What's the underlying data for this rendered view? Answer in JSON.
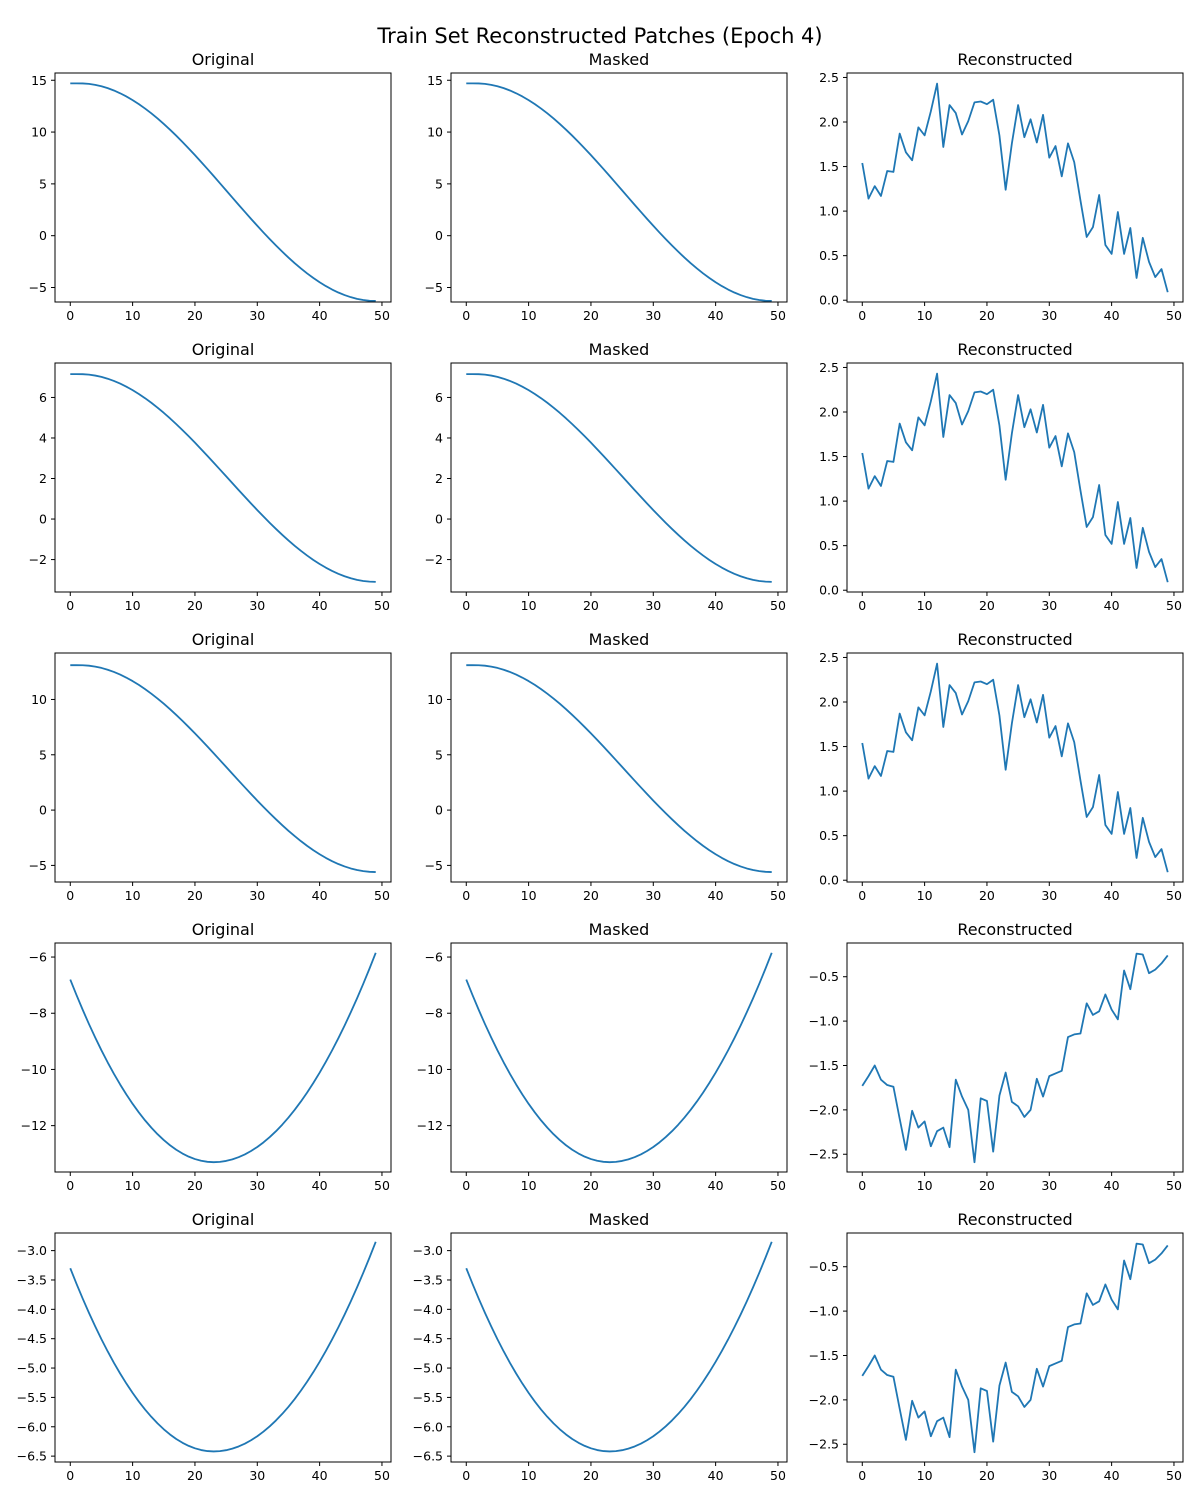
{
  "figure": {
    "suptitle": "Train Set Reconstructed Patches (Epoch 4)"
  },
  "colors": {
    "line": "#1f77b4",
    "axes": "#000000",
    "background": "#ffffff"
  },
  "chart_data": [
    {
      "type": "line",
      "title": "Original",
      "row": 0,
      "col": 0,
      "xlim": [
        -2.45,
        51.45
      ],
      "ylim": [
        -6.4,
        15.7
      ],
      "xticks": [
        0,
        10,
        20,
        30,
        40,
        50
      ],
      "yticks": [
        -5,
        0,
        5,
        10,
        15
      ],
      "ytick_labels": [
        "−5",
        "0",
        "5",
        "10",
        "15"
      ],
      "series": [
        {
          "kind": "cos",
          "a": 14.7,
          "b": -6.3
        }
      ]
    },
    {
      "type": "line",
      "title": "Masked",
      "row": 0,
      "col": 1,
      "xlim": [
        -2.45,
        51.45
      ],
      "ylim": [
        -6.4,
        15.7
      ],
      "xticks": [
        0,
        10,
        20,
        30,
        40,
        50
      ],
      "yticks": [
        -5,
        0,
        5,
        10,
        15
      ],
      "ytick_labels": [
        "−5",
        "0",
        "5",
        "10",
        "15"
      ],
      "series": [
        {
          "kind": "cos",
          "a": 14.7,
          "b": -6.3
        }
      ]
    },
    {
      "type": "line",
      "title": "Reconstructed",
      "row": 0,
      "col": 2,
      "xlim": [
        -2.45,
        51.45
      ],
      "ylim": [
        -0.02,
        2.55
      ],
      "xticks": [
        0,
        10,
        20,
        30,
        40,
        50
      ],
      "yticks": [
        0,
        0.5,
        1,
        1.5,
        2,
        2.5
      ],
      "ytick_labels": [
        "0.0",
        "0.5",
        "1.0",
        "1.5",
        "2.0",
        "2.5"
      ],
      "series": [
        {
          "kind": "recon1"
        }
      ]
    },
    {
      "type": "line",
      "title": "Original",
      "row": 1,
      "col": 0,
      "xlim": [
        -2.45,
        51.45
      ],
      "ylim": [
        -3.6,
        7.7
      ],
      "xticks": [
        0,
        10,
        20,
        30,
        40,
        50
      ],
      "yticks": [
        -2,
        0,
        2,
        4,
        6
      ],
      "ytick_labels": [
        "−2",
        "0",
        "2",
        "4",
        "6"
      ],
      "series": [
        {
          "kind": "cos",
          "a": 7.15,
          "b": -3.1
        }
      ]
    },
    {
      "type": "line",
      "title": "Masked",
      "row": 1,
      "col": 1,
      "xlim": [
        -2.45,
        51.45
      ],
      "ylim": [
        -3.6,
        7.7
      ],
      "xticks": [
        0,
        10,
        20,
        30,
        40,
        50
      ],
      "yticks": [
        -2,
        0,
        2,
        4,
        6
      ],
      "ytick_labels": [
        "−2",
        "0",
        "2",
        "4",
        "6"
      ],
      "series": [
        {
          "kind": "cos",
          "a": 7.15,
          "b": -3.1
        }
      ]
    },
    {
      "type": "line",
      "title": "Reconstructed",
      "row": 1,
      "col": 2,
      "xlim": [
        -2.45,
        51.45
      ],
      "ylim": [
        -0.02,
        2.55
      ],
      "xticks": [
        0,
        10,
        20,
        30,
        40,
        50
      ],
      "yticks": [
        0,
        0.5,
        1,
        1.5,
        2,
        2.5
      ],
      "ytick_labels": [
        "0.0",
        "0.5",
        "1.0",
        "1.5",
        "2.0",
        "2.5"
      ],
      "series": [
        {
          "kind": "recon1"
        }
      ]
    },
    {
      "type": "line",
      "title": "Original",
      "row": 2,
      "col": 0,
      "xlim": [
        -2.45,
        51.45
      ],
      "ylim": [
        -6.5,
        14.2
      ],
      "xticks": [
        0,
        10,
        20,
        30,
        40,
        50
      ],
      "yticks": [
        -5,
        0,
        5,
        10
      ],
      "ytick_labels": [
        "−5",
        "0",
        "5",
        "10"
      ],
      "series": [
        {
          "kind": "cos",
          "a": 13.1,
          "b": -5.6
        }
      ]
    },
    {
      "type": "line",
      "title": "Masked",
      "row": 2,
      "col": 1,
      "xlim": [
        -2.45,
        51.45
      ],
      "ylim": [
        -6.5,
        14.2
      ],
      "xticks": [
        0,
        10,
        20,
        30,
        40,
        50
      ],
      "yticks": [
        -5,
        0,
        5,
        10
      ],
      "ytick_labels": [
        "−5",
        "0",
        "5",
        "10"
      ],
      "series": [
        {
          "kind": "cos",
          "a": 13.1,
          "b": -5.6
        }
      ]
    },
    {
      "type": "line",
      "title": "Reconstructed",
      "row": 2,
      "col": 2,
      "xlim": [
        -2.45,
        51.45
      ],
      "ylim": [
        -0.02,
        2.55
      ],
      "xticks": [
        0,
        10,
        20,
        30,
        40,
        50
      ],
      "yticks": [
        0,
        0.5,
        1,
        1.5,
        2,
        2.5
      ],
      "ytick_labels": [
        "0.0",
        "0.5",
        "1.0",
        "1.5",
        "2.0",
        "2.5"
      ],
      "series": [
        {
          "kind": "recon1"
        }
      ]
    },
    {
      "type": "line",
      "title": "Original",
      "row": 3,
      "col": 0,
      "xlim": [
        -2.45,
        51.45
      ],
      "ylim": [
        -13.65,
        -5.5
      ],
      "xticks": [
        0,
        10,
        20,
        30,
        40,
        50
      ],
      "yticks": [
        -12,
        -10,
        -8,
        -6
      ],
      "ytick_labels": [
        "−12",
        "−10",
        "−8",
        "−6"
      ],
      "series": [
        {
          "kind": "parab",
          "start": -6.8,
          "min": -13.3,
          "vx": 23,
          "end": -5.85
        }
      ]
    },
    {
      "type": "line",
      "title": "Masked",
      "row": 3,
      "col": 1,
      "xlim": [
        -2.45,
        51.45
      ],
      "ylim": [
        -13.65,
        -5.5
      ],
      "xticks": [
        0,
        10,
        20,
        30,
        40,
        50
      ],
      "yticks": [
        -12,
        -10,
        -8,
        -6
      ],
      "ytick_labels": [
        "−12",
        "−10",
        "−8",
        "−6"
      ],
      "series": [
        {
          "kind": "parab",
          "start": -6.8,
          "min": -13.3,
          "vx": 23,
          "end": -5.85
        }
      ]
    },
    {
      "type": "line",
      "title": "Reconstructed",
      "row": 3,
      "col": 2,
      "xlim": [
        -2.45,
        51.45
      ],
      "ylim": [
        -2.7,
        -0.12
      ],
      "xticks": [
        0,
        10,
        20,
        30,
        40,
        50
      ],
      "yticks": [
        -2.5,
        -2,
        -1.5,
        -1,
        -0.5
      ],
      "ytick_labels": [
        "−2.5",
        "−2.0",
        "−1.5",
        "−1.0",
        "−0.5"
      ],
      "series": [
        {
          "kind": "recon2"
        }
      ]
    },
    {
      "type": "line",
      "title": "Original",
      "row": 4,
      "col": 0,
      "xlim": [
        -2.45,
        51.45
      ],
      "ylim": [
        -6.6,
        -2.7
      ],
      "xticks": [
        0,
        10,
        20,
        30,
        40,
        50
      ],
      "yticks": [
        -6.5,
        -6,
        -5.5,
        -5,
        -4.5,
        -4,
        -3.5,
        -3
      ],
      "ytick_labels": [
        "−6.5",
        "−6.0",
        "−5.5",
        "−5.0",
        "−4.5",
        "−4.0",
        "−3.5",
        "−3.0"
      ],
      "series": [
        {
          "kind": "parab",
          "start": -3.3,
          "min": -6.42,
          "vx": 23,
          "end": -2.85
        }
      ]
    },
    {
      "type": "line",
      "title": "Masked",
      "row": 4,
      "col": 1,
      "xlim": [
        -2.45,
        51.45
      ],
      "ylim": [
        -6.6,
        -2.7
      ],
      "xticks": [
        0,
        10,
        20,
        30,
        40,
        50
      ],
      "yticks": [
        -6.5,
        -6,
        -5.5,
        -5,
        -4.5,
        -4,
        -3.5,
        -3
      ],
      "ytick_labels": [
        "−6.5",
        "−6.0",
        "−5.5",
        "−5.0",
        "−4.5",
        "−4.0",
        "−3.5",
        "−3.0"
      ],
      "series": [
        {
          "kind": "parab",
          "start": -3.3,
          "min": -6.42,
          "vx": 23,
          "end": -2.85
        }
      ]
    },
    {
      "type": "line",
      "title": "Reconstructed",
      "row": 4,
      "col": 2,
      "xlim": [
        -2.45,
        51.45
      ],
      "ylim": [
        -2.7,
        -0.12
      ],
      "xticks": [
        0,
        10,
        20,
        30,
        40,
        50
      ],
      "yticks": [
        -2.5,
        -2,
        -1.5,
        -1,
        -0.5
      ],
      "ytick_labels": [
        "−2.5",
        "−2.0",
        "−1.5",
        "−1.0",
        "−0.5"
      ],
      "series": [
        {
          "kind": "recon2"
        }
      ]
    }
  ],
  "reconstructions": {
    "recon1": [
      1.54,
      1.14,
      1.28,
      1.17,
      1.45,
      1.44,
      1.87,
      1.66,
      1.57,
      1.94,
      1.85,
      2.12,
      2.43,
      1.72,
      2.19,
      2.1,
      1.86,
      2.01,
      2.22,
      2.23,
      2.2,
      2.25,
      1.85,
      1.24,
      1.76,
      2.19,
      1.83,
      2.03,
      1.77,
      2.08,
      1.6,
      1.73,
      1.39,
      1.76,
      1.55,
      1.12,
      0.71,
      0.82,
      1.18,
      0.62,
      0.52,
      0.99,
      0.52,
      0.81,
      0.25,
      0.7,
      0.43,
      0.26,
      0.35,
      0.09
    ],
    "recon2": [
      -1.73,
      -1.62,
      -1.5,
      -1.66,
      -1.72,
      -1.74,
      -2.1,
      -2.45,
      -2.01,
      -2.2,
      -2.13,
      -2.41,
      -2.24,
      -2.2,
      -2.42,
      -1.66,
      -1.85,
      -2.0,
      -2.59,
      -1.87,
      -1.9,
      -2.47,
      -1.84,
      -1.58,
      -1.91,
      -1.96,
      -2.08,
      -2.0,
      -1.65,
      -1.85,
      -1.62,
      -1.59,
      -1.56,
      -1.18,
      -1.15,
      -1.14,
      -0.8,
      -0.93,
      -0.89,
      -0.7,
      -0.87,
      -0.98,
      -0.43,
      -0.64,
      -0.24,
      -0.25,
      -0.46,
      -0.42,
      -0.35,
      -0.26
    ]
  }
}
